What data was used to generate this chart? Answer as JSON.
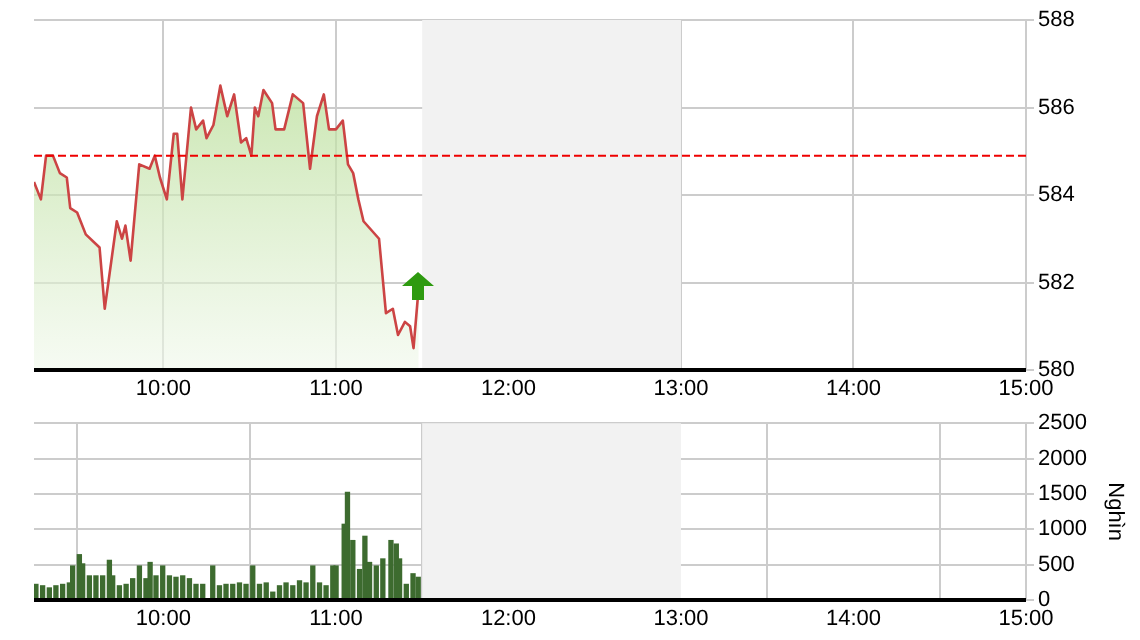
{
  "chart_data": [
    {
      "type": "area",
      "xlim": [
        9.25,
        15
      ],
      "xticks": [
        {
          "value": 10,
          "label": "10:00"
        },
        {
          "value": 11,
          "label": "11:00"
        },
        {
          "value": 12,
          "label": "12:00"
        },
        {
          "value": 13,
          "label": "13:00"
        },
        {
          "value": 14,
          "label": "14:00"
        },
        {
          "value": 15,
          "label": "15:00"
        }
      ],
      "ylim": [
        580,
        588
      ],
      "yticks": [
        580,
        582,
        584,
        586,
        588
      ],
      "grid": true,
      "legend": false,
      "marker": "none",
      "series": [
        {
          "color": "#cc4444",
          "x": [
            9.25,
            9.29,
            9.32,
            9.36,
            9.4,
            9.44,
            9.46,
            9.5,
            9.55,
            9.63,
            9.66,
            9.73,
            9.76,
            9.78,
            9.81,
            9.86,
            9.92,
            9.95,
            9.98,
            10.02,
            10.06,
            10.08,
            10.11,
            10.16,
            10.19,
            10.23,
            10.25,
            10.29,
            10.33,
            10.37,
            10.41,
            10.45,
            10.48,
            10.51,
            10.53,
            10.55,
            10.58,
            10.63,
            10.65,
            10.7,
            10.75,
            10.81,
            10.85,
            10.89,
            10.93,
            10.96,
            11,
            11.04,
            11.07,
            11.1,
            11.13,
            11.16,
            11.25,
            11.29,
            11.33,
            11.36,
            11.4,
            11.43,
            11.45,
            11.48
          ],
          "values": [
            584.3,
            583.9,
            584.9,
            584.9,
            584.5,
            584.4,
            583.7,
            583.6,
            583.1,
            582.8,
            581.4,
            583.4,
            583,
            583.3,
            582.5,
            584.7,
            584.6,
            584.9,
            584.4,
            583.9,
            585.4,
            585.4,
            583.9,
            586,
            585.5,
            585.7,
            585.3,
            585.6,
            586.5,
            585.8,
            586.3,
            585.2,
            585.3,
            584.9,
            586,
            585.8,
            586.4,
            586.1,
            585.5,
            585.5,
            586.3,
            586.1,
            584.6,
            585.8,
            586.3,
            585.5,
            585.5,
            585.7,
            584.7,
            584.5,
            583.9,
            583.4,
            583,
            581.3,
            581.4,
            580.8,
            581.1,
            581,
            580.5,
            581.9
          ]
        }
      ],
      "ref_lines": [
        {
          "axis": "y",
          "value": 584.9,
          "color": "#ee0000",
          "line_style": "dashed"
        }
      ],
      "bands": [
        {
          "axis": "x",
          "from": 11.5,
          "to": 13,
          "color": "#f2f2f2"
        }
      ]
    },
    {
      "type": "bar",
      "ylabel": "Nghìn",
      "xlim": [
        9.25,
        15
      ],
      "xticks": [
        {
          "value": 10,
          "label": "10:00"
        },
        {
          "value": 11,
          "label": "11:00"
        },
        {
          "value": 12,
          "label": "12:00"
        },
        {
          "value": 13,
          "label": "13:00"
        },
        {
          "value": 14,
          "label": "14:00"
        },
        {
          "value": 15,
          "label": "15:00"
        }
      ],
      "ylim": [
        0,
        2500
      ],
      "yticks": [
        0,
        500,
        1000,
        1500,
        2000,
        2500
      ],
      "grid": true,
      "legend": false,
      "x": [
        9.261,
        9.3,
        9.339,
        9.377,
        9.416,
        9.455,
        9.474,
        9.513,
        9.532,
        9.571,
        9.609,
        9.648,
        9.687,
        9.706,
        9.745,
        9.784,
        9.822,
        9.861,
        9.899,
        9.923,
        9.957,
        9.996,
        10.035,
        10.073,
        10.112,
        10.151,
        10.189,
        10.228,
        10.286,
        10.325,
        10.363,
        10.402,
        10.441,
        10.479,
        10.518,
        10.557,
        10.596,
        10.634,
        10.673,
        10.711,
        10.75,
        10.789,
        10.827,
        10.866,
        10.905,
        10.943,
        10.982,
        11.001,
        11.048,
        11.067,
        11.098,
        11.137,
        11.168,
        11.195,
        11.234,
        11.272,
        11.319,
        11.35,
        11.369,
        11.408,
        11.447,
        11.477
      ],
      "series": [
        {
          "color": "#3d6b2f",
          "values": [
            220,
            200,
            170,
            200,
            220,
            240,
            480,
            640,
            510,
            340,
            340,
            340,
            560,
            340,
            200,
            220,
            300,
            480,
            300,
            530,
            340,
            480,
            340,
            320,
            340,
            300,
            220,
            220,
            480,
            200,
            220,
            220,
            240,
            220,
            480,
            220,
            240,
            110,
            200,
            240,
            200,
            270,
            240,
            480,
            240,
            200,
            480,
            480,
            1070,
            1520,
            840,
            430,
            900,
            530,
            480,
            580,
            840,
            790,
            580,
            220,
            370,
            320
          ]
        }
      ],
      "bands": [
        {
          "axis": "x",
          "from": 11.5,
          "to": 13,
          "color": "#f2f2f2"
        }
      ]
    }
  ]
}
